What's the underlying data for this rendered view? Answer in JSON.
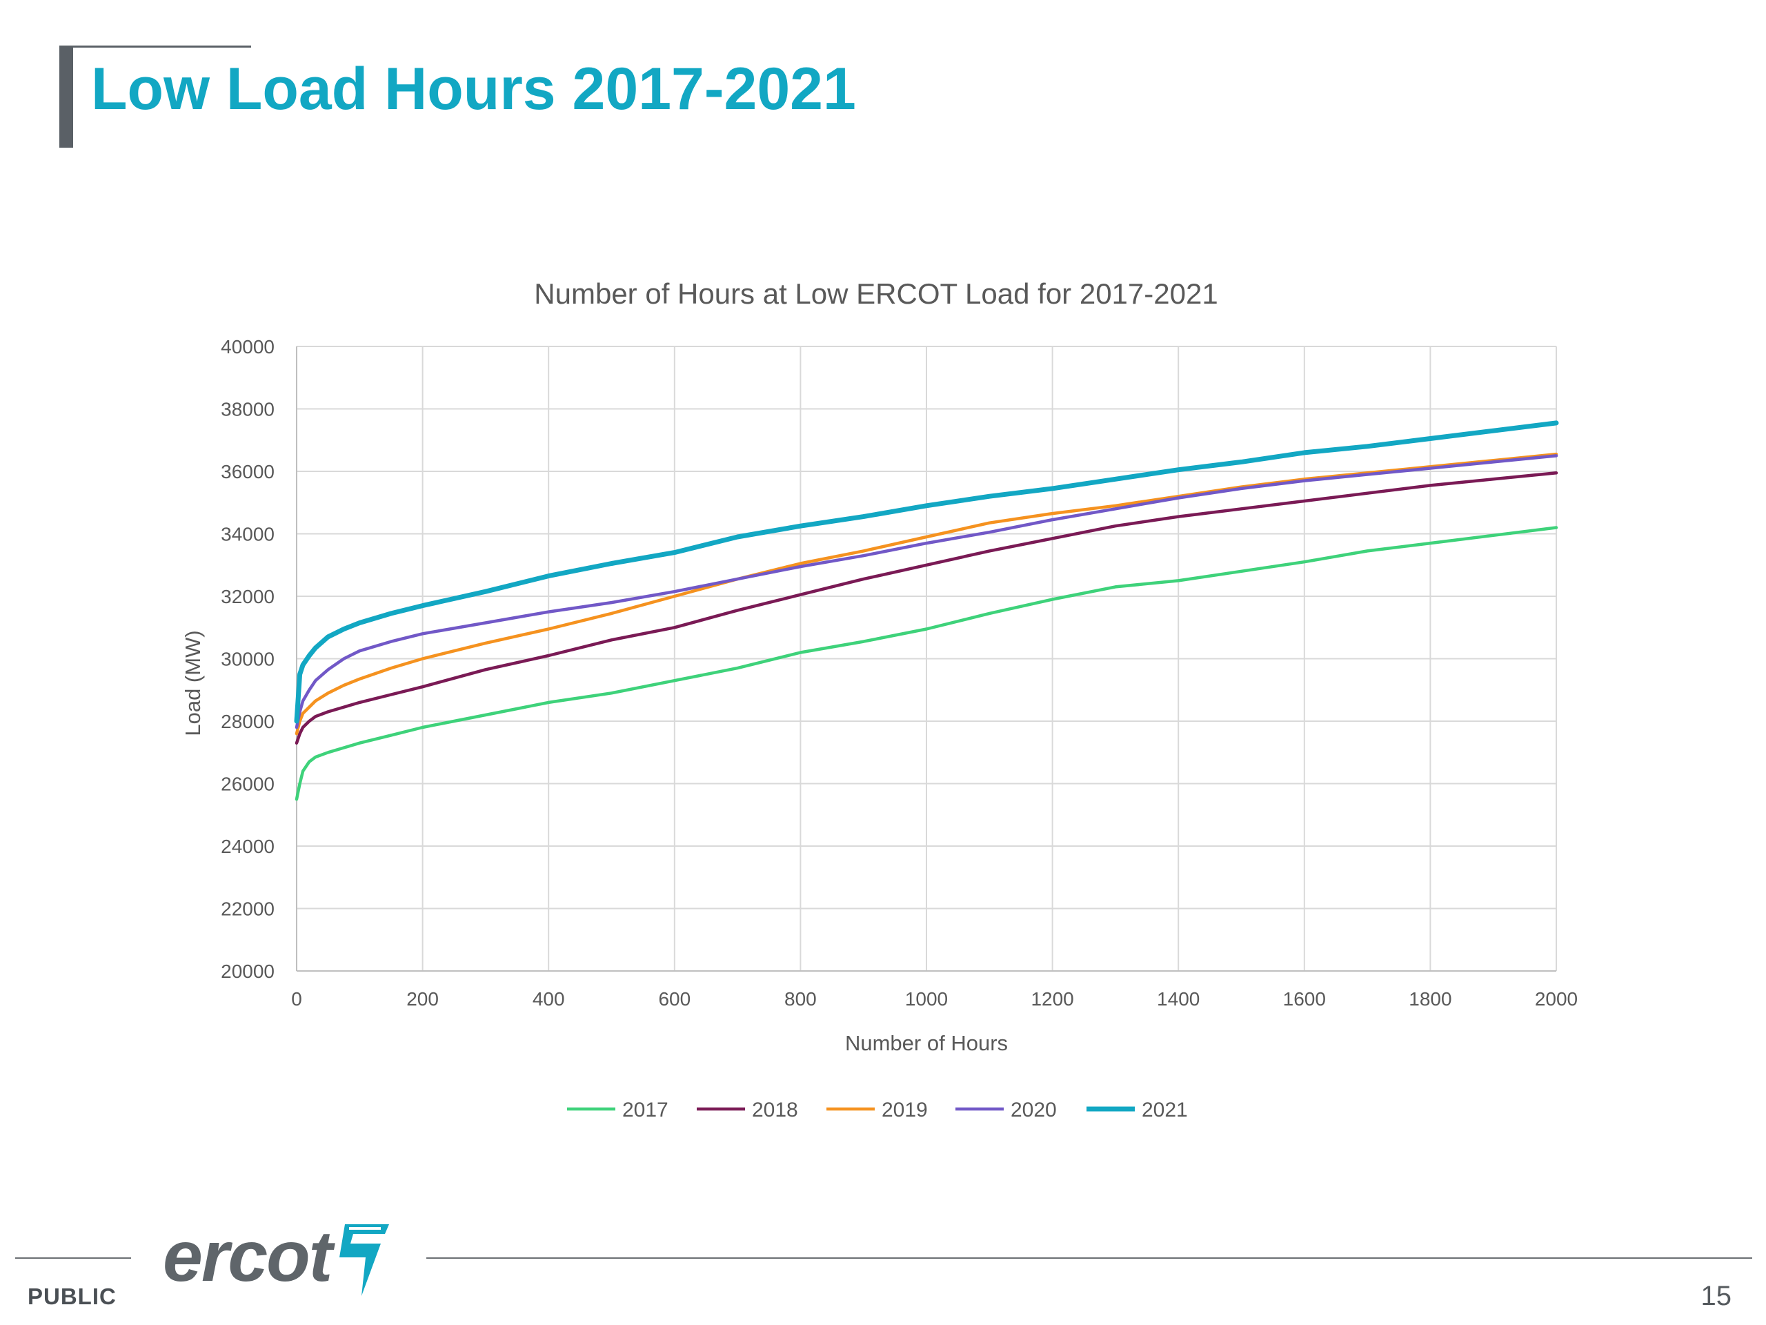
{
  "slide": {
    "title": "Low Load Hours 2017-2021",
    "footer_label": "PUBLIC",
    "page_number": "15",
    "logo_text": "ercot"
  },
  "chart_data": {
    "type": "line",
    "title": "Number of Hours at Low ERCOT Load for 2017-2021",
    "xlabel": "Number of Hours",
    "ylabel": "Load (MW)",
    "xlim": [
      0,
      2000
    ],
    "ylim": [
      20000,
      40000
    ],
    "x_ticks": [
      "0",
      "200",
      "400",
      "600",
      "800",
      "1000",
      "1200",
      "1400",
      "1600",
      "1800",
      "2000"
    ],
    "y_ticks": [
      "20000",
      "22000",
      "24000",
      "26000",
      "28000",
      "30000",
      "32000",
      "34000",
      "36000",
      "38000",
      "40000"
    ],
    "grid": true,
    "legend": "bottom",
    "x": [
      0,
      5,
      10,
      20,
      30,
      50,
      75,
      100,
      150,
      200,
      300,
      400,
      500,
      600,
      700,
      800,
      900,
      1000,
      1100,
      1200,
      1300,
      1400,
      1500,
      1600,
      1700,
      1800,
      1900,
      2000
    ],
    "series": [
      {
        "name": "2017",
        "color": "#3ed27a",
        "values": [
          25500,
          26000,
          26400,
          26700,
          26850,
          27000,
          27150,
          27300,
          27550,
          27800,
          28200,
          28600,
          28900,
          29300,
          29700,
          30200,
          30550,
          30950,
          31450,
          31900,
          32300,
          32500,
          32800,
          33100,
          33450,
          33700,
          33950,
          34200
        ]
      },
      {
        "name": "2018",
        "color": "#7a1a55",
        "values": [
          27300,
          27600,
          27800,
          28000,
          28150,
          28300,
          28450,
          28600,
          28850,
          29100,
          29650,
          30100,
          30600,
          31000,
          31550,
          32050,
          32550,
          33000,
          33450,
          33850,
          34250,
          34550,
          34800,
          35050,
          35300,
          35550,
          35750,
          35950
        ]
      },
      {
        "name": "2019",
        "color": "#f5921f",
        "values": [
          27600,
          28000,
          28250,
          28450,
          28650,
          28900,
          29150,
          29350,
          29700,
          30000,
          30500,
          30950,
          31450,
          32000,
          32550,
          33050,
          33450,
          33900,
          34350,
          34650,
          34900,
          35200,
          35500,
          35750,
          35950,
          36150,
          36350,
          36550
        ]
      },
      {
        "name": "2020",
        "color": "#7158c7",
        "values": [
          27800,
          28300,
          28650,
          29000,
          29300,
          29650,
          30000,
          30250,
          30550,
          30800,
          31150,
          31500,
          31800,
          32150,
          32550,
          32950,
          33300,
          33700,
          34050,
          34450,
          34800,
          35150,
          35450,
          35700,
          35900,
          36100,
          36300,
          36500
        ]
      },
      {
        "name": "2021",
        "color": "#12a7c3",
        "values": [
          28000,
          29500,
          29800,
          30100,
          30350,
          30700,
          30950,
          31150,
          31450,
          31700,
          32150,
          32650,
          33050,
          33400,
          33900,
          34250,
          34550,
          34900,
          35200,
          35450,
          35750,
          36050,
          36300,
          36600,
          36800,
          37050,
          37300,
          37550
        ]
      }
    ]
  }
}
